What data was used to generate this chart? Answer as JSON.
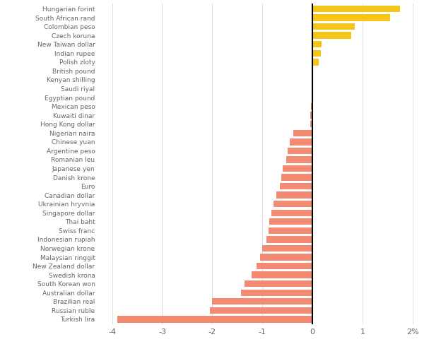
{
  "currencies": [
    "Hungarian forint",
    "South African rand",
    "Colombian peso",
    "Czech koruna",
    "New Taiwan dollar",
    "Indian rupee",
    "Polish zloty",
    "British pound",
    "Kenyan shilling",
    "Saudi riyal",
    "Egyptian pound",
    "Mexican peso",
    "Kuwaiti dinar",
    "Hong Kong dollar",
    "Nigerian naira",
    "Chinese yuan",
    "Argentine peso",
    "Romanian leu",
    "Japanese yen",
    "Danish krone",
    "Euro",
    "Canadian dollar",
    "Ukrainian hryvnia",
    "Singapore dollar",
    "Thai baht",
    "Swiss franc",
    "Indonesian rupiah",
    "Norwegian krone",
    "Malaysian ringgit",
    "New Zealand dollar",
    "Swedish krona",
    "South Korean won",
    "Australian dollar",
    "Brazilian real",
    "Russian ruble",
    "Turkish lira"
  ],
  "values": [
    1.75,
    1.55,
    0.85,
    0.78,
    0.18,
    0.16,
    0.13,
    0.0,
    0.0,
    0.0,
    -0.02,
    -0.03,
    -0.04,
    -0.05,
    -0.38,
    -0.45,
    -0.5,
    -0.52,
    -0.6,
    -0.62,
    -0.65,
    -0.72,
    -0.78,
    -0.82,
    -0.86,
    -0.88,
    -0.92,
    -1.0,
    -1.05,
    -1.12,
    -1.22,
    -1.35,
    -1.42,
    -2.0,
    -2.05,
    -3.9
  ],
  "positive_color": "#f5c518",
  "negative_color": "#f28b72",
  "background_color": "#ffffff",
  "xlim": [
    -4.3,
    2.3
  ],
  "xticks": [
    -4,
    -3,
    -2,
    -1,
    0,
    1,
    2
  ],
  "figsize": [
    6.24,
    4.94
  ],
  "dpi": 100
}
